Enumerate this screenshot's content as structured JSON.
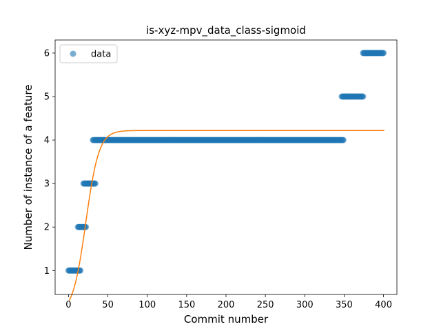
{
  "chart_data": {
    "type": "scatter",
    "title": "is-xyz-mpv_data_class-sigmoid",
    "xlabel": "Commit number",
    "ylabel": "Number of instance of a feature",
    "xlim": [
      -17,
      417
    ],
    "ylim": [
      0.45,
      6.3
    ],
    "xticks": [
      0,
      50,
      100,
      150,
      200,
      250,
      300,
      350,
      400
    ],
    "yticks": [
      1,
      2,
      3,
      4,
      5,
      6
    ],
    "legend": {
      "position": "upper-left",
      "entries": [
        "data"
      ]
    },
    "grid": false,
    "colors": {
      "data": "#1f77b4",
      "fit": "#ff7f0e"
    },
    "series": [
      {
        "name": "data",
        "kind": "scatter",
        "segments": [
          {
            "x_start": 0,
            "x_end": 15,
            "y": 1
          },
          {
            "x_start": 12,
            "x_end": 22,
            "y": 2
          },
          {
            "x_start": 19,
            "x_end": 34,
            "y": 3
          },
          {
            "x_start": 31,
            "x_end": 349,
            "y": 4
          },
          {
            "x_start": 347,
            "x_end": 374,
            "y": 5
          },
          {
            "x_start": 374,
            "x_end": 400,
            "y": 6
          }
        ]
      },
      {
        "kind": "line",
        "function": "sigmoid",
        "params": {
          "L": 4.22,
          "k": 0.12,
          "x0": 22
        },
        "x_range": [
          1,
          401
        ]
      }
    ]
  }
}
